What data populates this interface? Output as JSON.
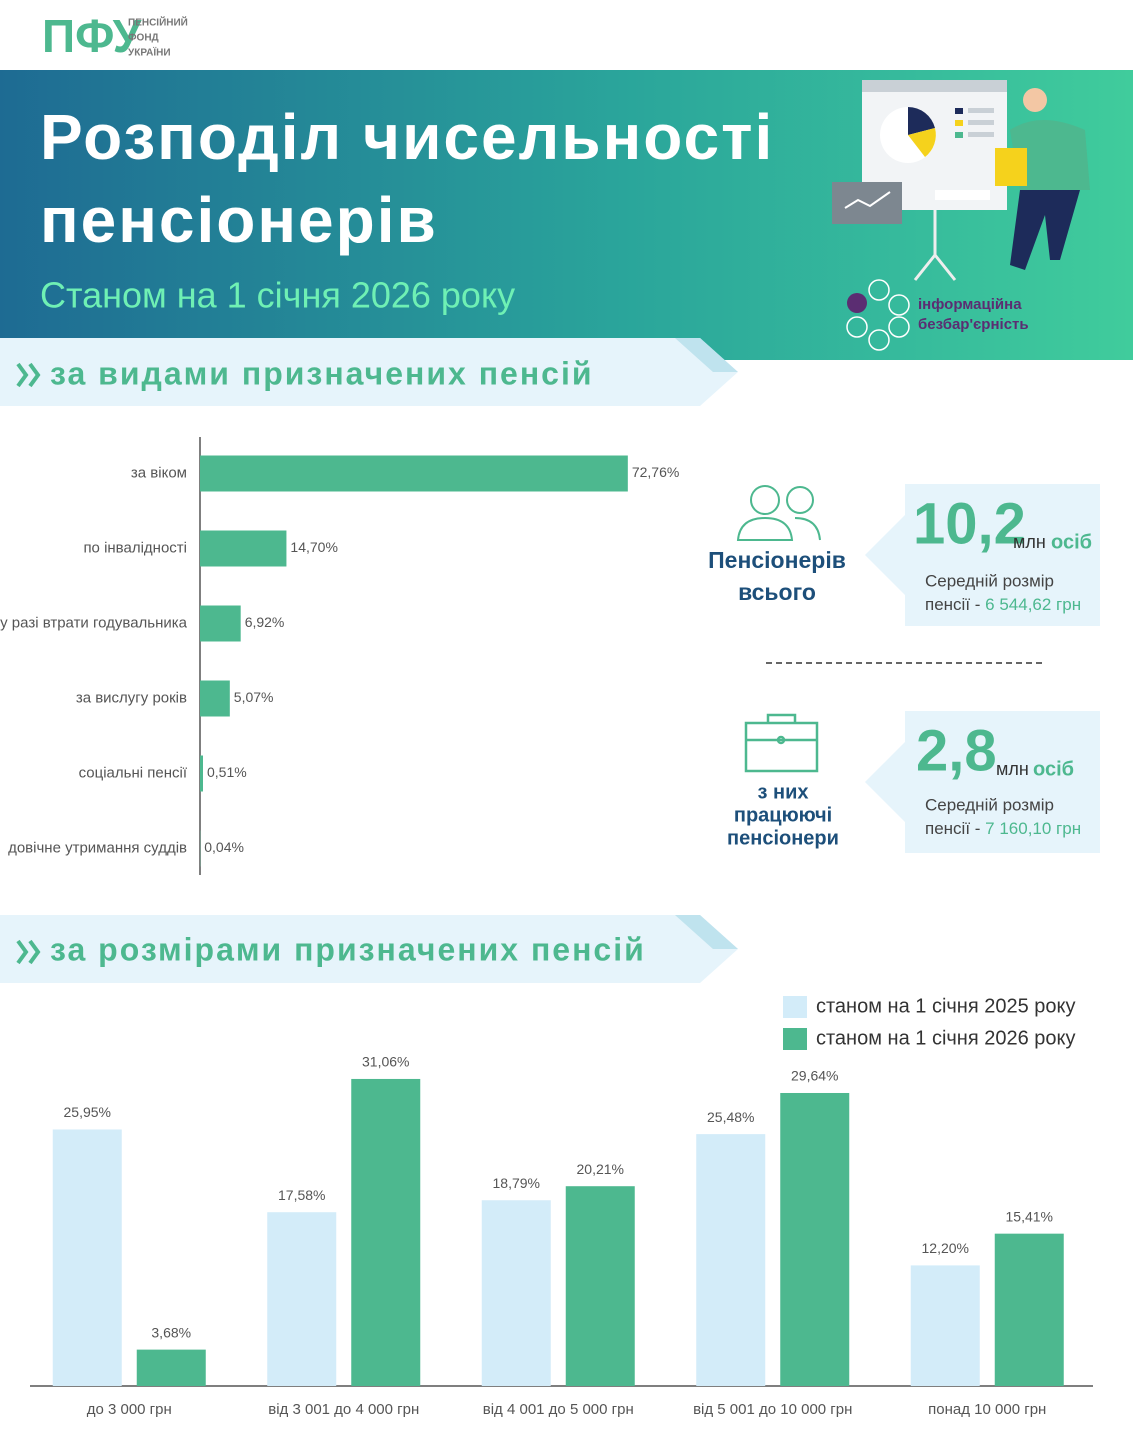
{
  "header": {
    "logo": "ПФУ",
    "logo_text": [
      "ПЕНСІЙНИЙ",
      "ФОНД",
      "УКРАЇНИ"
    ],
    "title_lines": [
      "Розподіл чисельності",
      "пенсіонерів"
    ],
    "subtitle": "Станом на 1 січня 2026 року",
    "badge": [
      "інформаційна",
      "безбар'єрність"
    ]
  },
  "sections": [
    "за видами призначених пенсій",
    "за розмірами призначених пенсій"
  ],
  "stats": [
    {
      "label": [
        "Пенсіонерів",
        "всього"
      ],
      "value": "10,2",
      "unit": "млн",
      "people": "осіб",
      "avg_label": [
        "Середній розмір",
        "пенсії - "
      ],
      "avg_value": "6 544,62 грн"
    },
    {
      "label": [
        "з них",
        "працюючі",
        "пенсіонери"
      ],
      "value": "2,8",
      "unit": "млн",
      "people": "осіб",
      "avg_label": [
        "Середній розмір",
        "пенсії - "
      ],
      "avg_value": "7 160,10 грн"
    }
  ],
  "chart_data": [
    {
      "type": "hbar",
      "categories": [
        "за віком",
        "по інвалідності",
        "у разі втрати годувальника",
        "за вислугу років",
        "соціальні пенсії",
        "довічне утримання суддів"
      ],
      "values": [
        72.76,
        14.7,
        6.92,
        5.07,
        0.51,
        0.04
      ],
      "value_labels": [
        "72,76%",
        "14,70%",
        "6,92%",
        "5,07%",
        "0,51%",
        "0,04%"
      ],
      "color": "#4db88f",
      "xlim": [
        0,
        100
      ]
    },
    {
      "type": "grouped-bar",
      "categories": [
        "до 3 000 грн",
        "від 3 001 до 4 000 грн",
        "від 4 001 до 5 000 грн",
        "від 5 001 до 10 000 грн",
        "понад 10 000 грн"
      ],
      "series": [
        {
          "name": "станом на 1 січня 2025 року",
          "color": "#d3ecf9",
          "values": [
            25.95,
            17.58,
            18.79,
            25.48,
            12.2
          ],
          "value_labels": [
            "25,95%",
            "17,58%",
            "18,79%",
            "25,48%",
            "12,20%"
          ]
        },
        {
          "name": "станом на 1 січня 2026 року",
          "color": "#4db88f",
          "values": [
            3.68,
            31.06,
            20.21,
            29.64,
            15.41
          ],
          "value_labels": [
            "3,68%",
            "31,06%",
            "20,21%",
            "29,64%",
            "15,41%"
          ]
        }
      ],
      "ylim": [
        0,
        35
      ]
    }
  ]
}
